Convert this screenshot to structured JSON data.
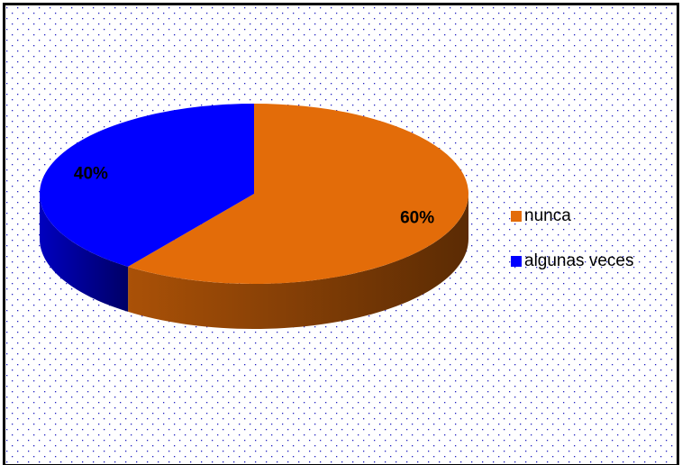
{
  "chart_data": {
    "type": "pie3d",
    "categories": [
      "nunca",
      "algunas veces"
    ],
    "values": [
      60,
      40
    ],
    "value_labels": [
      "60%",
      "40%"
    ],
    "colors": [
      "#e36c09",
      "#0000ff"
    ],
    "legend": "right"
  }
}
